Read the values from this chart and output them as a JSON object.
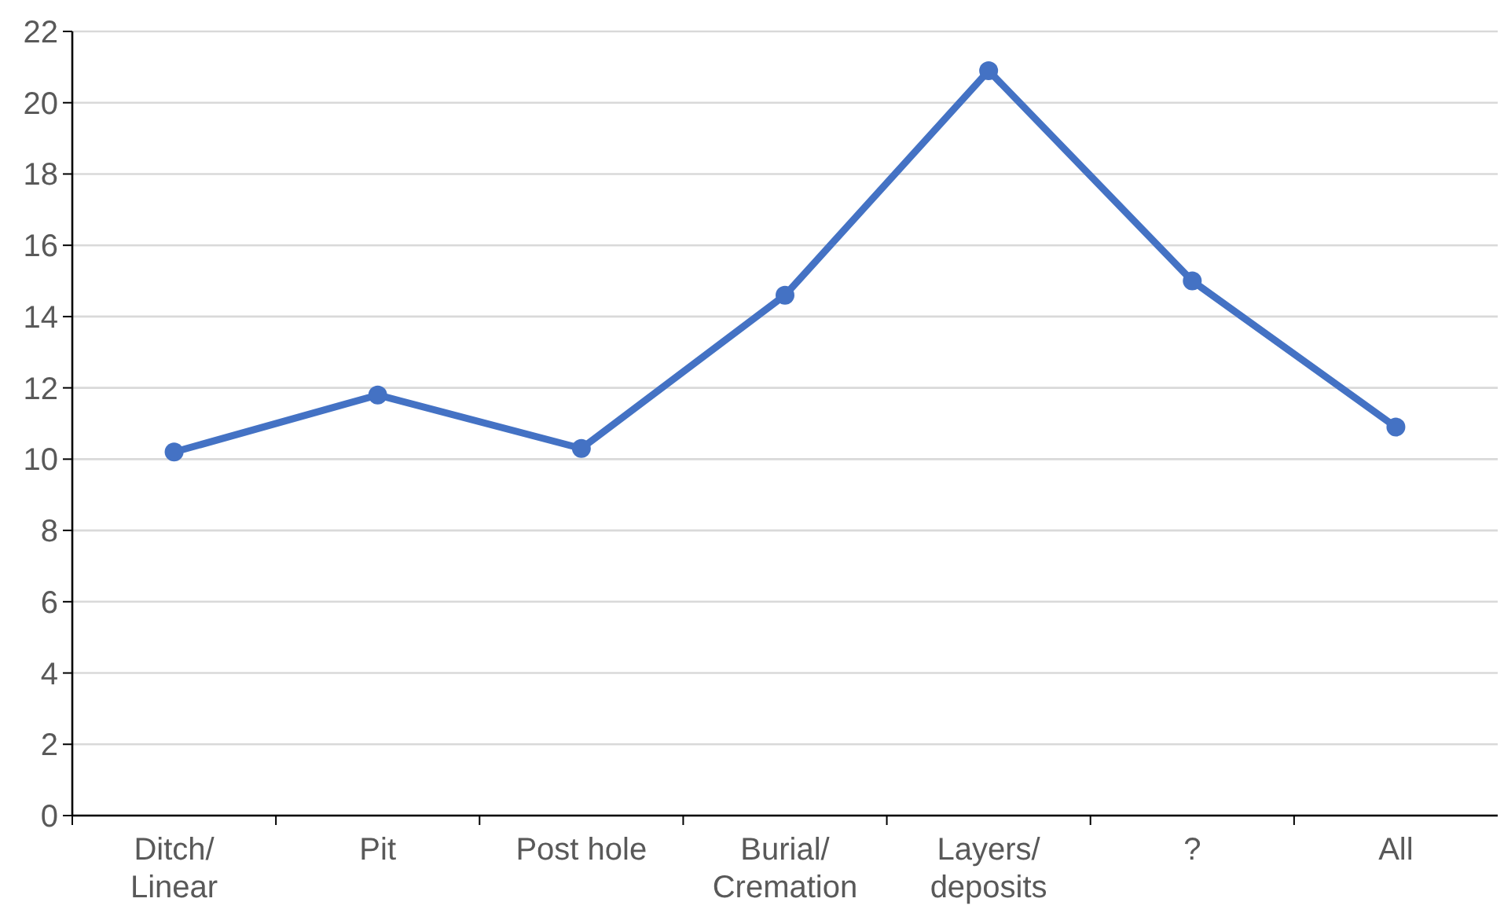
{
  "chart_data": {
    "type": "line",
    "categories": [
      "Ditch/\nLinear",
      "Pit",
      "Post hole",
      "Burial/\nCremation",
      "Layers/\ndeposits",
      "?",
      "All"
    ],
    "series": [
      {
        "color": "#4472c4",
        "values": [
          10.2,
          11.8,
          10.3,
          14.6,
          20.9,
          15.0,
          10.9
        ]
      }
    ],
    "ylim": [
      0,
      22
    ],
    "yticks": [
      0,
      2,
      4,
      6,
      8,
      10,
      12,
      14,
      16,
      18,
      20,
      22
    ],
    "grid": "y",
    "marker": "circle",
    "line_style": "solid"
  }
}
